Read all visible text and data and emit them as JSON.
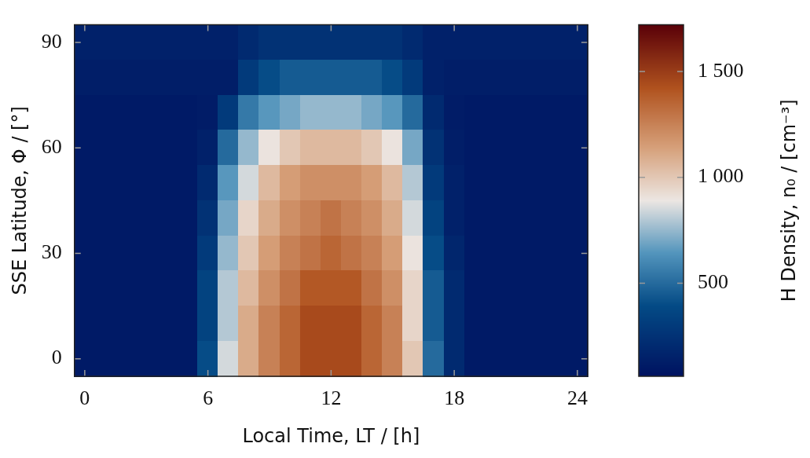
{
  "chart_data": {
    "type": "heatmap",
    "xlabel": "Local Time, LT / [h]",
    "ylabel": "SSE Latitude, Φ / [°]",
    "clabel": "H Density, n₀ / [cm⁻³]",
    "categories": [
      "0",
      null,
      null,
      null,
      null,
      null,
      "6",
      null,
      null,
      null,
      null,
      null,
      "12",
      null,
      null,
      null,
      null,
      null,
      "18",
      null,
      null,
      null,
      null,
      null,
      "24"
    ],
    "y_categories": [
      "90",
      null,
      null,
      "60",
      null,
      null,
      "30",
      null,
      null,
      "0"
    ],
    "clim": [
      60,
      1720
    ],
    "cticks": [
      {
        "value": 500,
        "label": "500"
      },
      {
        "value": 1000,
        "label": "1 000"
      },
      {
        "value": 1500,
        "label": "1 500"
      }
    ],
    "cells": [
      [
        150,
        150,
        150,
        150,
        150,
        150,
        150,
        150,
        200,
        250,
        250,
        250,
        250,
        250,
        250,
        250,
        200,
        150,
        150,
        150,
        150,
        150,
        150,
        150,
        150
      ],
      [
        130,
        130,
        130,
        130,
        130,
        130,
        130,
        130,
        300,
        400,
        450,
        450,
        450,
        450,
        450,
        400,
        300,
        150,
        130,
        130,
        130,
        130,
        130,
        130,
        130
      ],
      [
        110,
        110,
        110,
        110,
        110,
        110,
        120,
        300,
        550,
        650,
        700,
        750,
        750,
        750,
        700,
        650,
        500,
        200,
        120,
        110,
        110,
        110,
        110,
        110,
        110
      ],
      [
        110,
        110,
        110,
        110,
        110,
        110,
        150,
        500,
        750,
        900,
        1000,
        1050,
        1050,
        1050,
        1000,
        900,
        700,
        250,
        130,
        110,
        110,
        110,
        110,
        110,
        110
      ],
      [
        110,
        110,
        110,
        110,
        110,
        110,
        200,
        650,
        850,
        1050,
        1150,
        1200,
        1200,
        1200,
        1150,
        1050,
        800,
        300,
        150,
        110,
        110,
        110,
        110,
        110,
        110
      ],
      [
        110,
        110,
        110,
        110,
        110,
        110,
        250,
        700,
        950,
        1100,
        1200,
        1250,
        1300,
        1250,
        1200,
        1100,
        850,
        350,
        150,
        110,
        110,
        110,
        110,
        110,
        110
      ],
      [
        110,
        110,
        110,
        110,
        110,
        110,
        300,
        750,
        1000,
        1150,
        1250,
        1300,
        1350,
        1300,
        1250,
        1150,
        900,
        400,
        180,
        110,
        110,
        110,
        110,
        110,
        110
      ],
      [
        110,
        110,
        110,
        110,
        110,
        110,
        350,
        800,
        1050,
        1200,
        1300,
        1400,
        1400,
        1400,
        1300,
        1200,
        950,
        450,
        200,
        110,
        110,
        110,
        110,
        110,
        110
      ],
      [
        110,
        110,
        110,
        110,
        110,
        110,
        350,
        800,
        1100,
        1250,
        1350,
        1450,
        1450,
        1450,
        1350,
        1250,
        950,
        450,
        200,
        110,
        110,
        110,
        110,
        110,
        110
      ],
      [
        110,
        110,
        110,
        110,
        110,
        110,
        400,
        850,
        1100,
        1250,
        1350,
        1450,
        1450,
        1450,
        1350,
        1250,
        1000,
        500,
        200,
        110,
        110,
        110,
        110,
        110,
        110
      ]
    ]
  }
}
